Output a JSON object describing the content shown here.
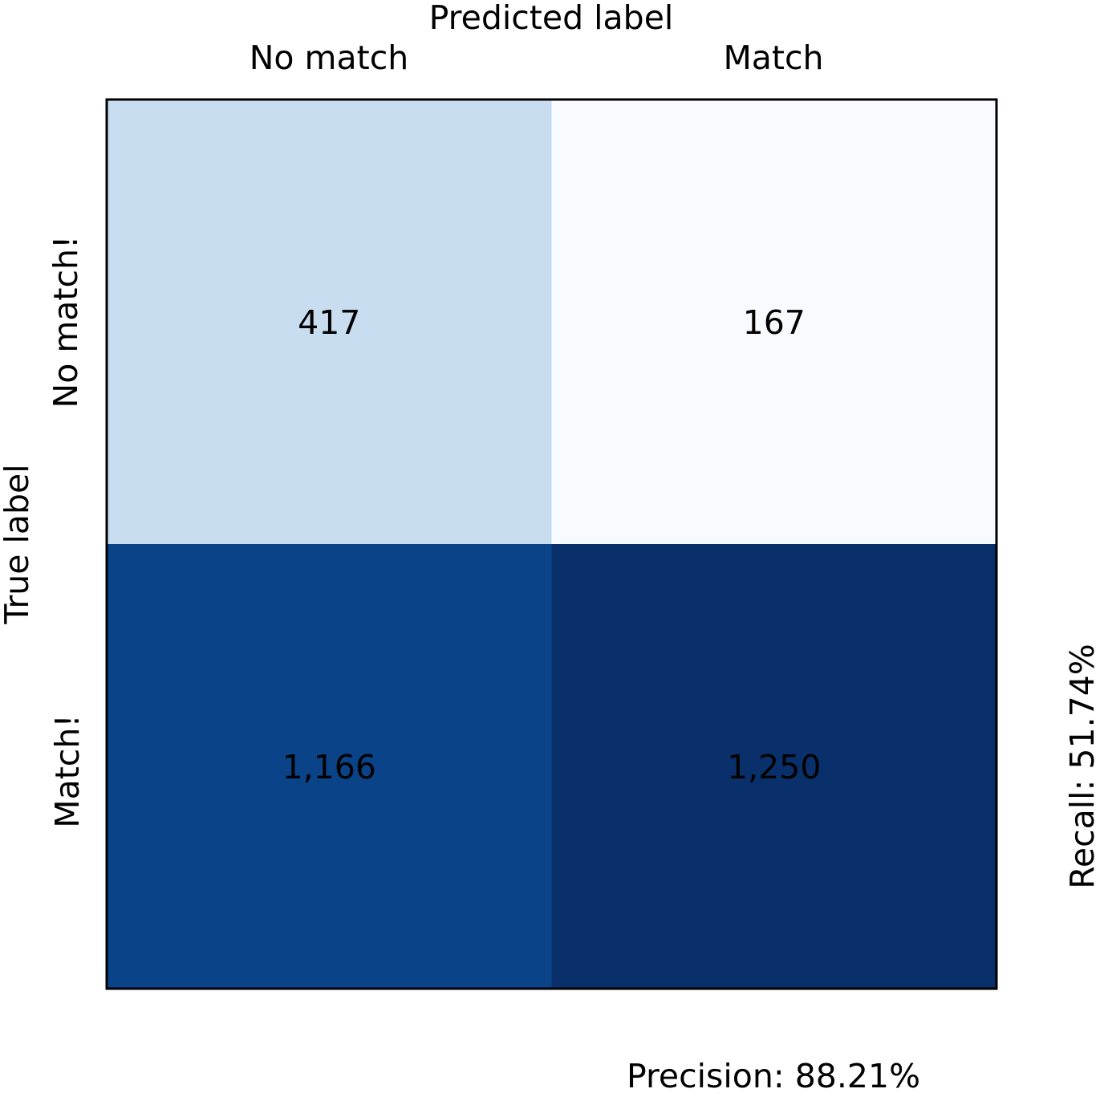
{
  "chart_data": {
    "type": "heatmap",
    "title": "",
    "xlabel": "Predicted label",
    "ylabel": "True label",
    "x_categories": [
      "No match",
      "Match"
    ],
    "y_categories": [
      "No match!",
      "Match!"
    ],
    "values": [
      [
        417,
        167
      ],
      [
        1166,
        1250
      ]
    ],
    "value_labels": [
      [
        "417",
        "167"
      ],
      [
        "1,166",
        "1,250"
      ]
    ],
    "colormap": "Blues",
    "cell_colors": [
      [
        "#c8ddf0",
        "#f7fbff"
      ],
      [
        "#0a4387",
        "#09306b"
      ]
    ],
    "legend": "none",
    "grid": false,
    "recall_text": "Recall: 51.74%",
    "precision_text": "Precision: 88.21%"
  }
}
